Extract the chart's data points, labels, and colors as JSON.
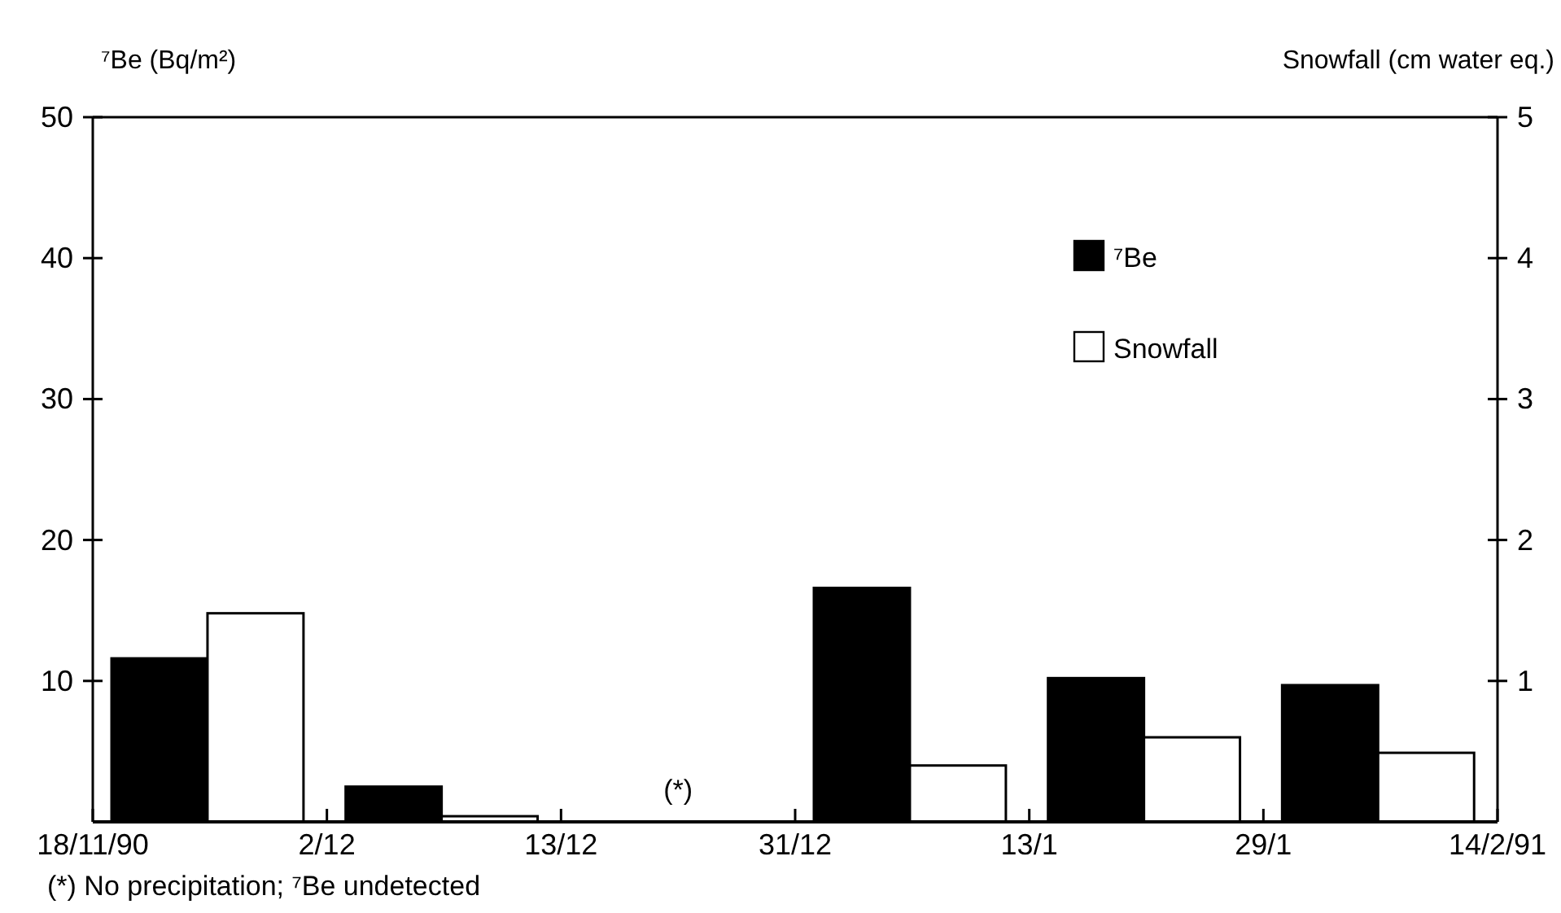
{
  "chart_data": {
    "type": "bar",
    "ylabel": "⁷Be (Bq/m²)",
    "y2label": "Snowfall (cm water eq.)",
    "categories": [
      null,
      null,
      null,
      null,
      null,
      null
    ],
    "ylim": [
      0,
      50
    ],
    "yticks": [
      10,
      20,
      30,
      40,
      50
    ],
    "y2lim": [
      0,
      5
    ],
    "y2ticks": [
      1,
      2,
      3,
      4,
      5
    ],
    "series": [
      {
        "name": "⁷Be",
        "color": "#000000",
        "values": [
          11.6,
          2.5,
          null,
          16.6,
          10.2,
          9.7
        ]
      },
      {
        "name": "Snowfall",
        "color": "#ffffff",
        "axis": "y2",
        "values": [
          1.48,
          0.04,
          null,
          0.4,
          0.6,
          0.49
        ]
      }
    ],
    "legend": "top right",
    "grid": false,
    "annotations": [
      "18/11/90",
      "2/12",
      "13/12",
      "31/12",
      "13/1",
      "29/1",
      "14/2/91",
      "(*)",
      "(*) No precipitation; ⁷Be undetected"
    ]
  }
}
